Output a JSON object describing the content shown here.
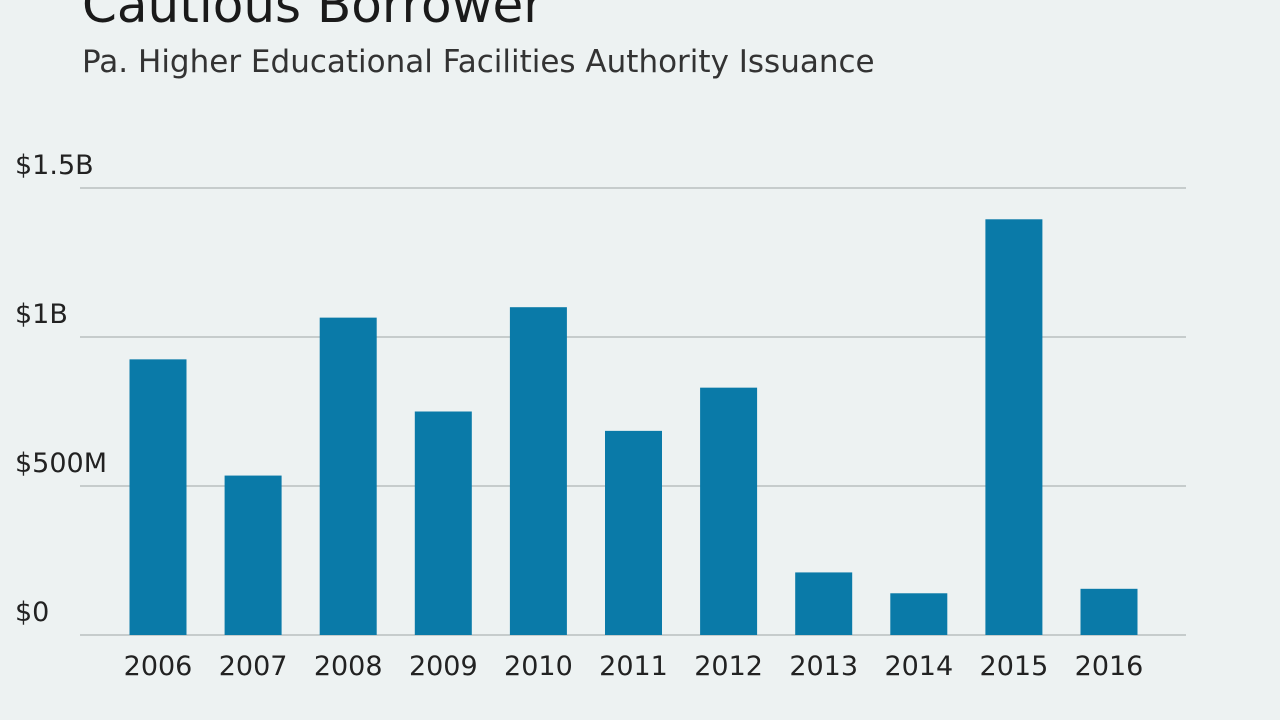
{
  "chart_data": {
    "type": "bar",
    "title": "Cautious Borrower",
    "subtitle": "Pa. Higher Educational Facilities Authority Issuance",
    "categories": [
      "2006",
      "2007",
      "2008",
      "2009",
      "2010",
      "2011",
      "2012",
      "2013",
      "2014",
      "2015",
      "2016"
    ],
    "values": [
      925000000,
      535000000,
      1065000000,
      750000000,
      1100000000,
      685000000,
      830000000,
      210000000,
      140000000,
      1395000000,
      155000000
    ],
    "color": "#0a7aa8",
    "ylim": [
      0,
      1500000000
    ],
    "yticks": [
      {
        "value": 0,
        "label": "$0"
      },
      {
        "value": 500000000,
        "label": "$500M"
      },
      {
        "value": 1000000000,
        "label": "$1B"
      },
      {
        "value": 1500000000,
        "label": "$1.5B"
      }
    ],
    "grid": true
  }
}
